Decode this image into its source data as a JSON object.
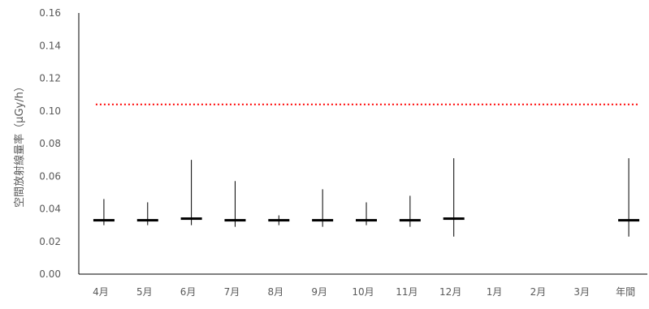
{
  "chart_data": {
    "type": "box",
    "title": "",
    "xlabel": "",
    "ylabel": "空間放射線量率（μGy/h）",
    "ylim": [
      0,
      0.16
    ],
    "yticks": [
      "0.00",
      "0.02",
      "0.04",
      "0.06",
      "0.08",
      "0.10",
      "0.12",
      "0.14",
      "0.16"
    ],
    "categories": [
      "4月",
      "5月",
      "6月",
      "7月",
      "8月",
      "9月",
      "10月",
      "11月",
      "12月",
      "1月",
      "2月",
      "3月",
      "年間"
    ],
    "series": [
      {
        "values": [
          {
            "min": 0.03,
            "median": 0.033,
            "max": 0.046
          },
          {
            "min": 0.03,
            "median": 0.033,
            "max": 0.044
          },
          {
            "min": 0.03,
            "median": 0.034,
            "max": 0.07
          },
          {
            "min": 0.029,
            "median": 0.033,
            "max": 0.057
          },
          {
            "min": 0.03,
            "median": 0.033,
            "max": 0.036
          },
          {
            "min": 0.029,
            "median": 0.033,
            "max": 0.052
          },
          {
            "min": 0.03,
            "median": 0.033,
            "max": 0.044
          },
          {
            "min": 0.029,
            "median": 0.033,
            "max": 0.048
          },
          {
            "min": 0.023,
            "median": 0.034,
            "max": 0.071
          },
          null,
          null,
          null,
          {
            "min": 0.023,
            "median": 0.033,
            "max": 0.071
          }
        ]
      }
    ],
    "reference_line": {
      "value": 0.104,
      "color": "#ff0000",
      "style": "dotted"
    },
    "colors": {
      "box": "#000000",
      "axis": "#000000",
      "text": "#595959"
    },
    "grid": false,
    "legend": "none"
  }
}
